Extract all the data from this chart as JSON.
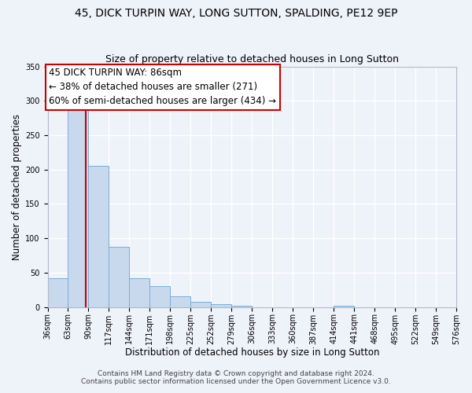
{
  "title": "45, DICK TURPIN WAY, LONG SUTTON, SPALDING, PE12 9EP",
  "subtitle": "Size of property relative to detached houses in Long Sutton",
  "xlabel": "Distribution of detached houses by size in Long Sutton",
  "ylabel": "Number of detached properties",
  "bin_edges": [
    36,
    63,
    90,
    117,
    144,
    171,
    198,
    225,
    252,
    279,
    306,
    333,
    360,
    387,
    414,
    441,
    468,
    495,
    522,
    549,
    576
  ],
  "bar_heights": [
    42,
    290,
    205,
    88,
    42,
    30,
    16,
    8,
    4,
    2,
    0,
    0,
    0,
    0,
    2,
    0,
    0,
    0,
    0,
    0
  ],
  "bar_color": "#c8d9ee",
  "bar_edge_color": "#7aadd4",
  "property_line_x": 86,
  "property_line_color": "#cc0000",
  "annotation_text": "45 DICK TURPIN WAY: 86sqm\n← 38% of detached houses are smaller (271)\n60% of semi-detached houses are larger (434) →",
  "annotation_box_color": "#ffffff",
  "annotation_box_edge_color": "#cc0000",
  "ylim": [
    0,
    350
  ],
  "tick_labels": [
    "36sqm",
    "63sqm",
    "90sqm",
    "117sqm",
    "144sqm",
    "171sqm",
    "198sqm",
    "225sqm",
    "252sqm",
    "279sqm",
    "306sqm",
    "333sqm",
    "360sqm",
    "387sqm",
    "414sqm",
    "441sqm",
    "468sqm",
    "495sqm",
    "522sqm",
    "549sqm",
    "576sqm"
  ],
  "footer_line1": "Contains HM Land Registry data © Crown copyright and database right 2024.",
  "footer_line2": "Contains public sector information licensed under the Open Government Licence v3.0.",
  "bg_color": "#eef2f9",
  "plot_bg_color": "#eef2f9",
  "grid_color": "#ffffff",
  "title_fontsize": 10,
  "subtitle_fontsize": 9,
  "axis_label_fontsize": 8.5,
  "tick_fontsize": 7,
  "annotation_fontsize": 8.5,
  "footer_fontsize": 6.5
}
